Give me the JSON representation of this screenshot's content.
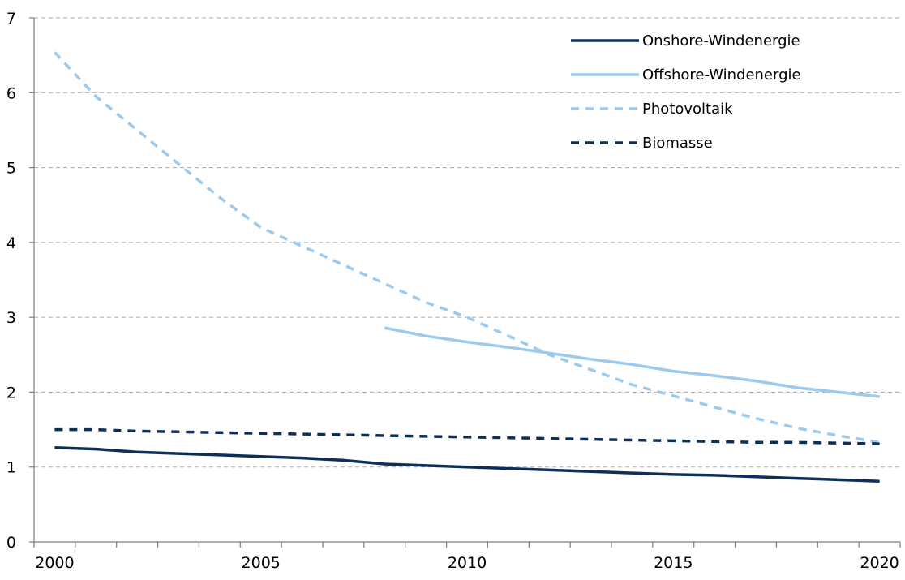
{
  "chart_data": {
    "type": "line",
    "x": [
      2000,
      2001,
      2002,
      2003,
      2004,
      2005,
      2006,
      2007,
      2008,
      2009,
      2010,
      2011,
      2012,
      2013,
      2014,
      2015,
      2016,
      2017,
      2018,
      2019,
      2020
    ],
    "xlim": [
      2000,
      2021
    ],
    "ylim": [
      0,
      7
    ],
    "xticks": [
      2000,
      2005,
      2010,
      2015,
      2020
    ],
    "yticks": [
      0,
      1,
      2,
      3,
      4,
      5,
      6,
      7
    ],
    "grid": "horizontal dashed",
    "legend_position": "top-right",
    "title": "",
    "xlabel": "",
    "ylabel": "",
    "series": [
      {
        "name": "Onshore-Windenergie",
        "color": "#0d2e57",
        "style": "solid",
        "values": [
          1.26,
          1.24,
          1.2,
          1.18,
          1.16,
          1.14,
          1.12,
          1.09,
          1.04,
          1.02,
          1.0,
          0.98,
          0.96,
          0.94,
          0.92,
          0.9,
          0.89,
          0.87,
          0.85,
          0.83,
          0.81
        ]
      },
      {
        "name": "Offshore-Windenergie",
        "color": "#9ccaef",
        "style": "solid",
        "values": [
          null,
          null,
          null,
          null,
          null,
          null,
          null,
          null,
          2.86,
          2.75,
          2.67,
          2.6,
          2.52,
          2.44,
          2.37,
          2.28,
          2.22,
          2.15,
          2.06,
          2.0,
          1.94
        ]
      },
      {
        "name": "Photovoltaik",
        "color": "#9ccaef",
        "style": "dashed",
        "values": [
          6.54,
          5.95,
          5.5,
          5.05,
          4.6,
          4.2,
          3.95,
          3.7,
          3.45,
          3.2,
          3.0,
          2.75,
          2.5,
          2.3,
          2.1,
          1.95,
          1.8,
          1.65,
          1.52,
          1.42,
          1.33
        ]
      },
      {
        "name": "Biomasse",
        "color": "#0d2e57",
        "style": "dashed",
        "values": [
          1.5,
          1.5,
          1.48,
          1.47,
          1.46,
          1.45,
          1.44,
          1.43,
          1.42,
          1.41,
          1.4,
          1.39,
          1.38,
          1.37,
          1.36,
          1.35,
          1.34,
          1.33,
          1.33,
          1.32,
          1.31
        ]
      }
    ]
  }
}
